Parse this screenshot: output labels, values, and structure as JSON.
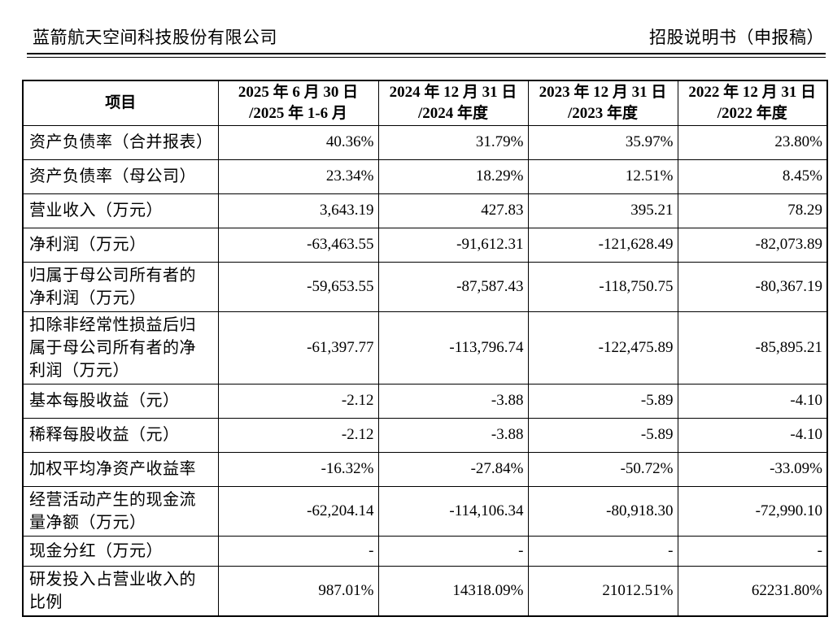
{
  "page": {
    "company_name": "蓝箭航天空间科技股份有限公司",
    "doc_label": "招股说明书（申报稿）"
  },
  "table": {
    "columns": [
      {
        "lines": [
          "项目"
        ]
      },
      {
        "lines": [
          "2025 年 6 月 30 日",
          "/2025 年 1-6 月"
        ]
      },
      {
        "lines": [
          "2024 年 12 月 31 日",
          "/2024 年度"
        ]
      },
      {
        "lines": [
          "2023 年 12 月 31 日",
          "/2023 年度"
        ]
      },
      {
        "lines": [
          "2022 年 12 月 31 日",
          "/2022 年度"
        ]
      }
    ],
    "rows": [
      {
        "label": "资产负债率（合并报表）",
        "values": [
          "40.36%",
          "31.79%",
          "35.97%",
          "23.80%"
        ]
      },
      {
        "label": "资产负债率（母公司）",
        "values": [
          "23.34%",
          "18.29%",
          "12.51%",
          "8.45%"
        ]
      },
      {
        "label": "营业收入（万元）",
        "values": [
          "3,643.19",
          "427.83",
          "395.21",
          "78.29"
        ]
      },
      {
        "label": "净利润（万元）",
        "values": [
          "-63,463.55",
          "-91,612.31",
          "-121,628.49",
          "-82,073.89"
        ]
      },
      {
        "label": "归属于母公司所有者的\n净利润（万元）",
        "values": [
          "-59,653.55",
          "-87,587.43",
          "-118,750.75",
          "-80,367.19"
        ]
      },
      {
        "label": "扣除非经常性损益后归\n属于母公司所有者的净\n利润（万元）",
        "values": [
          "-61,397.77",
          "-113,796.74",
          "-122,475.89",
          "-85,895.21"
        ]
      },
      {
        "label": "基本每股收益（元）",
        "values": [
          "-2.12",
          "-3.88",
          "-5.89",
          "-4.10"
        ]
      },
      {
        "label": "稀释每股收益（元）",
        "values": [
          "-2.12",
          "-3.88",
          "-5.89",
          "-4.10"
        ]
      },
      {
        "label": "加权平均净资产收益率",
        "values": [
          "-16.32%",
          "-27.84%",
          "-50.72%",
          "-33.09%"
        ]
      },
      {
        "label": "经营活动产生的现金流\n量净额（万元）",
        "values": [
          "-62,204.14",
          "-114,106.34",
          "-80,918.30",
          "-72,990.10"
        ]
      },
      {
        "label": "现金分红（万元）",
        "values": [
          "-",
          "-",
          "-",
          "-"
        ]
      },
      {
        "label": "研发投入占营业收入的\n比例",
        "values": [
          "987.01%",
          "14318.09%",
          "21012.51%",
          "62231.80%"
        ]
      }
    ]
  }
}
